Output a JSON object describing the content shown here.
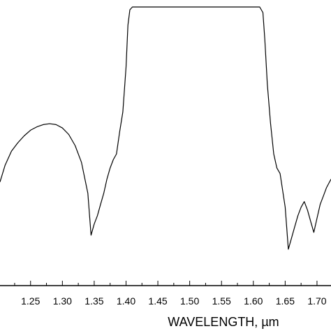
{
  "chart_data": {
    "type": "line",
    "title": "",
    "xlabel": "WAVELENGTH, µm",
    "ylabel": "",
    "xlim": [
      1.202,
      1.722
    ],
    "ylim": [
      0,
      1
    ],
    "grid": false,
    "legend": "none",
    "x_ticks": [
      1.25,
      1.3,
      1.35,
      1.4,
      1.45,
      1.5,
      1.55,
      1.6,
      1.65,
      1.7
    ],
    "x_tick_labels": [
      "1.25",
      "1.30",
      "1.35",
      "1.40",
      "1.45",
      "1.50",
      "1.55",
      "1.60",
      "1.65",
      "1.70"
    ],
    "series": [
      {
        "values": [
          [
            1.202,
            0.37
          ],
          [
            1.21,
            0.43
          ],
          [
            1.22,
            0.48
          ],
          [
            1.23,
            0.51
          ],
          [
            1.24,
            0.535
          ],
          [
            1.25,
            0.555
          ],
          [
            1.26,
            0.567
          ],
          [
            1.27,
            0.575
          ],
          [
            1.28,
            0.578
          ],
          [
            1.29,
            0.575
          ],
          [
            1.3,
            0.563
          ],
          [
            1.31,
            0.54
          ],
          [
            1.32,
            0.5
          ],
          [
            1.33,
            0.44
          ],
          [
            1.34,
            0.33
          ],
          [
            1.345,
            0.18
          ],
          [
            1.35,
            0.22
          ],
          [
            1.355,
            0.25
          ],
          [
            1.36,
            0.29
          ],
          [
            1.365,
            0.33
          ],
          [
            1.37,
            0.38
          ],
          [
            1.375,
            0.42
          ],
          [
            1.38,
            0.45
          ],
          [
            1.385,
            0.47
          ],
          [
            1.39,
            0.55
          ],
          [
            1.395,
            0.62
          ],
          [
            1.4,
            0.78
          ],
          [
            1.403,
            0.93
          ],
          [
            1.406,
            0.985
          ],
          [
            1.41,
            0.995
          ],
          [
            1.5,
            0.995
          ],
          [
            1.61,
            0.995
          ],
          [
            1.615,
            0.975
          ],
          [
            1.618,
            0.88
          ],
          [
            1.622,
            0.72
          ],
          [
            1.627,
            0.58
          ],
          [
            1.632,
            0.47
          ],
          [
            1.637,
            0.42
          ],
          [
            1.642,
            0.4
          ],
          [
            1.65,
            0.28
          ],
          [
            1.655,
            0.13
          ],
          [
            1.66,
            0.17
          ],
          [
            1.665,
            0.21
          ],
          [
            1.67,
            0.25
          ],
          [
            1.675,
            0.28
          ],
          [
            1.68,
            0.3
          ],
          [
            1.685,
            0.27
          ],
          [
            1.69,
            0.23
          ],
          [
            1.695,
            0.19
          ],
          [
            1.7,
            0.24
          ],
          [
            1.705,
            0.29
          ],
          [
            1.71,
            0.32
          ],
          [
            1.715,
            0.35
          ],
          [
            1.722,
            0.38
          ]
        ]
      }
    ]
  }
}
